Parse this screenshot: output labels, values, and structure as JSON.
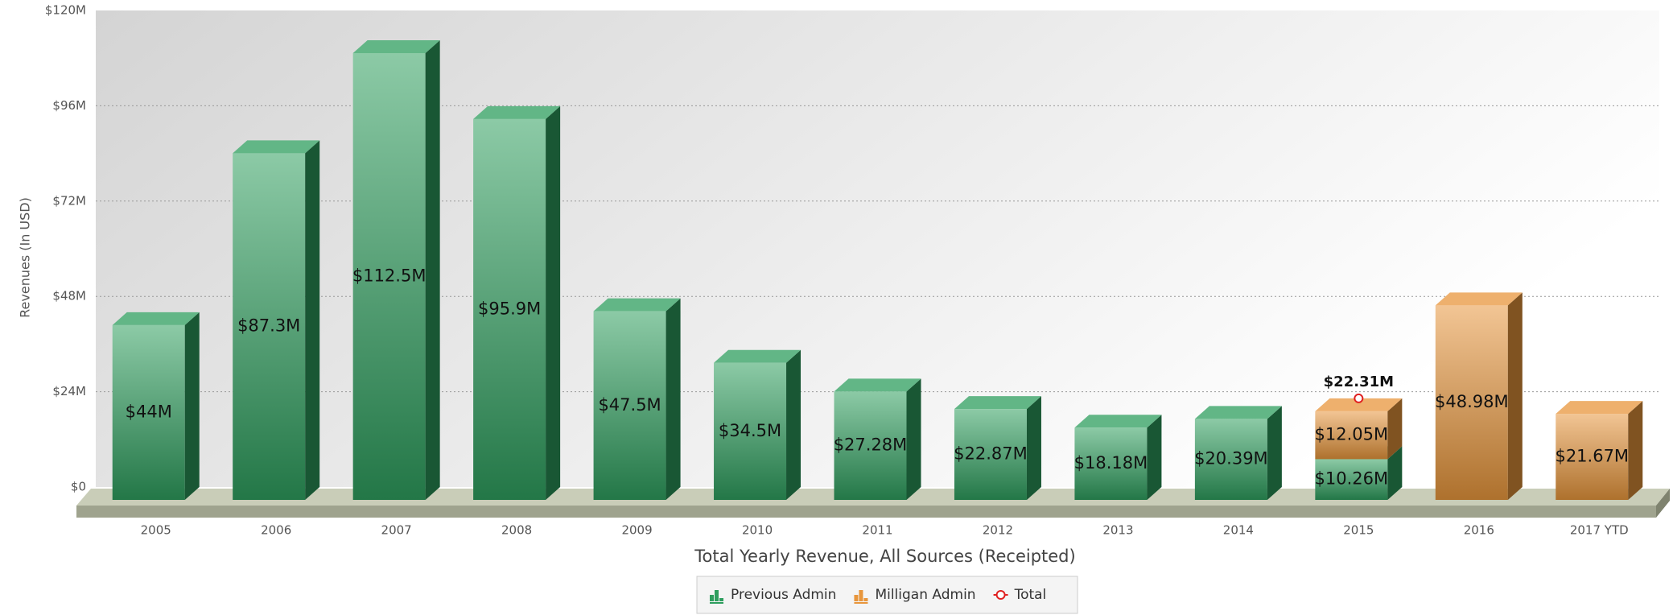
{
  "chart_data": {
    "type": "bar",
    "stacked": true,
    "x_label": "Total Yearly Revenue, All Sources (Receipted)",
    "y_label": "Revenues (In USD)",
    "categories": [
      "2005",
      "2006",
      "2007",
      "2008",
      "2009",
      "2010",
      "2011",
      "2012",
      "2013",
      "2014",
      "2015",
      "2016",
      "2017 YTD"
    ],
    "series": [
      {
        "name": "Previous Admin",
        "type": "bar",
        "color": "#2e9e5e",
        "values": [
          44,
          87.3,
          112.5,
          95.9,
          47.5,
          34.5,
          27.28,
          22.87,
          18.18,
          20.39,
          10.26,
          null,
          null
        ],
        "value_labels": [
          "$44M",
          "$87.3M",
          "$112.5M",
          "$95.9M",
          "$47.5M",
          "$34.5M",
          "$27.28M",
          "$22.87M",
          "$18.18M",
          "$20.39M",
          "$10.26M",
          null,
          null
        ]
      },
      {
        "name": "Milligan Admin",
        "type": "bar",
        "color": "#e8963c",
        "values": [
          null,
          null,
          null,
          null,
          null,
          null,
          null,
          null,
          null,
          null,
          12.05,
          48.98,
          21.67
        ],
        "value_labels": [
          null,
          null,
          null,
          null,
          null,
          null,
          null,
          null,
          null,
          null,
          "$12.05M",
          "$48.98M",
          "$21.67M"
        ]
      },
      {
        "name": "Total",
        "type": "line",
        "color": "#e02020",
        "values": [
          null,
          null,
          null,
          null,
          null,
          null,
          null,
          null,
          null,
          null,
          22.31,
          null,
          null
        ],
        "value_labels": [
          null,
          null,
          null,
          null,
          null,
          null,
          null,
          null,
          null,
          null,
          "$22.31M",
          null,
          null
        ]
      }
    ],
    "ylim": [
      0,
      120
    ],
    "yticks": [
      {
        "value": 0,
        "label": "$0"
      },
      {
        "value": 24,
        "label": "$24M"
      },
      {
        "value": 48,
        "label": "$48M"
      },
      {
        "value": 72,
        "label": "$72M"
      },
      {
        "value": 96,
        "label": "$96M"
      },
      {
        "value": 120,
        "label": "$120M"
      }
    ],
    "grid": true,
    "legend": "bottom"
  }
}
